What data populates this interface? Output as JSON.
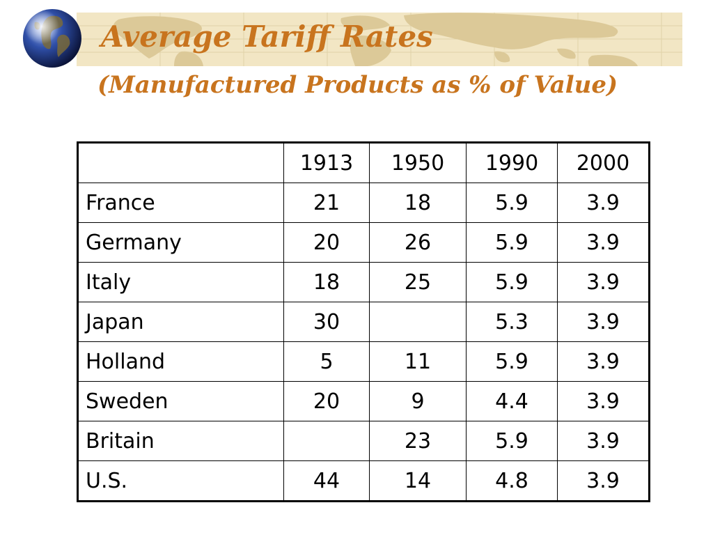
{
  "slide": {
    "title": "Average Tariff Rates",
    "subtitle": "(Manufactured Products as % of Value)"
  },
  "table": {
    "columns": [
      "",
      "1913",
      "1950",
      "1990",
      "2000"
    ],
    "rows": [
      {
        "country": "France",
        "values": [
          "21",
          "18",
          "5.9",
          "3.9"
        ]
      },
      {
        "country": "Germany",
        "values": [
          "20",
          "26",
          "5.9",
          "3.9"
        ]
      },
      {
        "country": "Italy",
        "values": [
          "18",
          "25",
          "5.9",
          "3.9"
        ]
      },
      {
        "country": "Japan",
        "values": [
          "30",
          "",
          "5.3",
          "3.9"
        ]
      },
      {
        "country": "Holland",
        "values": [
          "5",
          "11",
          "5.9",
          "3.9"
        ]
      },
      {
        "country": "Sweden",
        "values": [
          "20",
          "9",
          "4.4",
          "3.9"
        ]
      },
      {
        "country": "Britain",
        "values": [
          "",
          "23",
          "5.9",
          "3.9"
        ]
      },
      {
        "country": "U.S.",
        "values": [
          "44",
          "14",
          "4.8",
          "3.9"
        ]
      }
    ]
  },
  "colors": {
    "title": "#c8741e",
    "banner": "#f2e6c4",
    "map_land": "#dcc998"
  },
  "icons": {
    "globe": "globe-icon",
    "banner_background": "world-map-icon"
  }
}
